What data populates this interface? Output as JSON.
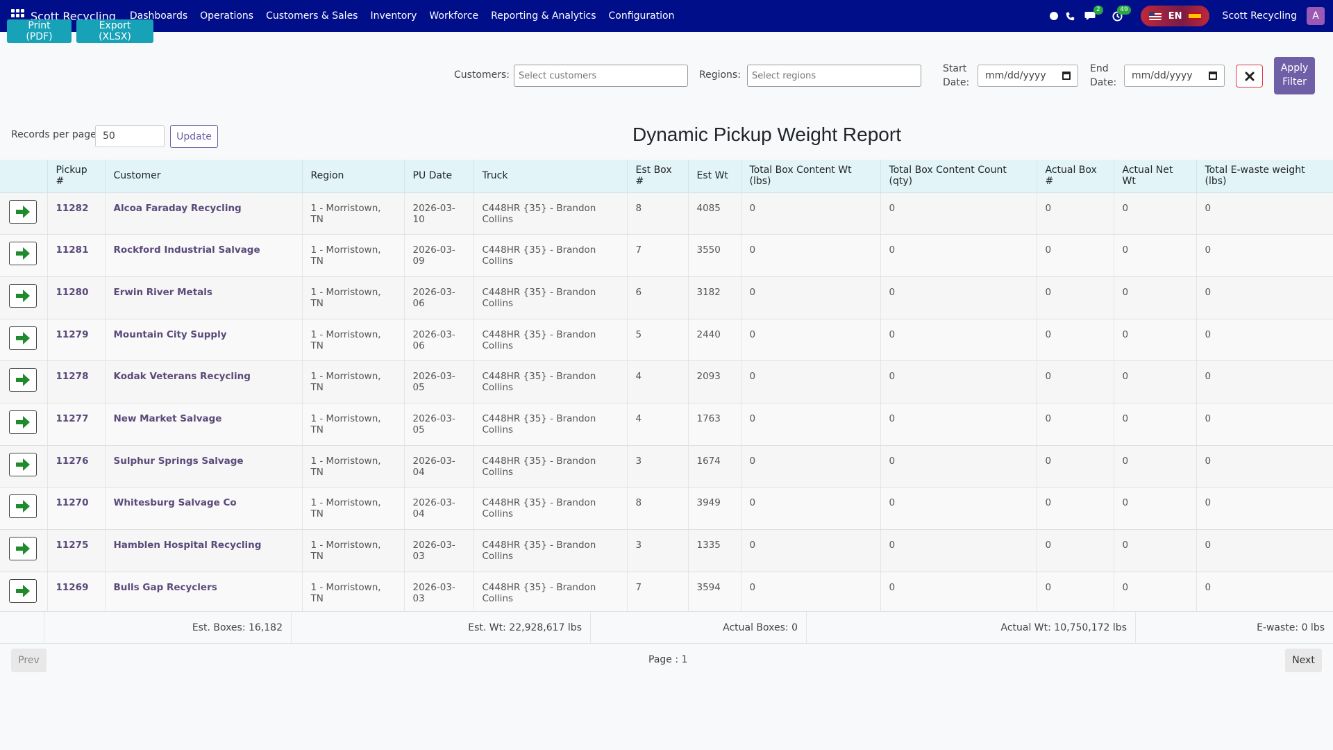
{
  "app": {
    "name": "Scott Recycling",
    "user_name": "Scott Recycling",
    "avatar_letter": "A"
  },
  "nav": {
    "menu": [
      "Dashboards",
      "Operations",
      "Customers & Sales",
      "Inventory",
      "Workforce",
      "Reporting & Analytics",
      "Configuration"
    ],
    "chat_badge": "2",
    "activity_badge": "49",
    "language": "EN"
  },
  "actions": {
    "print_label": "Print (PDF)",
    "export_label": "Export (XLSX)"
  },
  "filters": {
    "customers_label": "Customers:",
    "customers_placeholder": "Select customers",
    "regions_label": "Regions:",
    "regions_placeholder": "Select regions",
    "start_label_1": "Start",
    "start_label_2": "Date:",
    "start_value": "mm/dd/yyyy",
    "end_label_1": "End",
    "end_label_2": "Date:",
    "end_value": "mm/dd/yyyy",
    "apply_label_1": "Apply",
    "apply_label_2": "Filter"
  },
  "records": {
    "label": "Records per page:",
    "value": "50",
    "update_label": "Update"
  },
  "report_title": "Dynamic Pickup Weight Report",
  "table": {
    "headers": [
      "",
      "Pickup #",
      "Customer",
      "Region",
      "PU Date",
      "Truck",
      "Est Box #",
      "Est Wt",
      "Total Box Content Wt (lbs)",
      "Total Box Content Count (qty)",
      "Actual Box #",
      "Actual Net Wt",
      "Total E-waste weight (lbs)"
    ],
    "rows": [
      [
        "11282",
        "Alcoa Faraday Recycling",
        "1 - Morristown, TN",
        "2026-03-10",
        "C448HR {35} - Brandon Collins",
        "8",
        "4085",
        "0",
        "0",
        "0",
        "0",
        "0"
      ],
      [
        "11281",
        "Rockford Industrial Salvage",
        "1 - Morristown, TN",
        "2026-03-09",
        "C448HR {35} - Brandon Collins",
        "7",
        "3550",
        "0",
        "0",
        "0",
        "0",
        "0"
      ],
      [
        "11280",
        "Erwin River Metals",
        "1 - Morristown, TN",
        "2026-03-06",
        "C448HR {35} - Brandon Collins",
        "6",
        "3182",
        "0",
        "0",
        "0",
        "0",
        "0"
      ],
      [
        "11279",
        "Mountain City Supply",
        "1 - Morristown, TN",
        "2026-03-06",
        "C448HR {35} - Brandon Collins",
        "5",
        "2440",
        "0",
        "0",
        "0",
        "0",
        "0"
      ],
      [
        "11278",
        "Kodak Veterans Recycling",
        "1 - Morristown, TN",
        "2026-03-05",
        "C448HR {35} - Brandon Collins",
        "4",
        "2093",
        "0",
        "0",
        "0",
        "0",
        "0"
      ],
      [
        "11277",
        "New Market Salvage",
        "1 - Morristown, TN",
        "2026-03-05",
        "C448HR {35} - Brandon Collins",
        "4",
        "1763",
        "0",
        "0",
        "0",
        "0",
        "0"
      ],
      [
        "11276",
        "Sulphur Springs Salvage",
        "1 - Morristown, TN",
        "2026-03-04",
        "C448HR {35} - Brandon Collins",
        "3",
        "1674",
        "0",
        "0",
        "0",
        "0",
        "0"
      ],
      [
        "11270",
        "Whitesburg Salvage Co",
        "1 - Morristown, TN",
        "2026-03-04",
        "C448HR {35} - Brandon Collins",
        "8",
        "3949",
        "0",
        "0",
        "0",
        "0",
        "0"
      ],
      [
        "11275",
        "Hamblen Hospital Recycling",
        "1 - Morristown, TN",
        "2026-03-03",
        "C448HR {35} - Brandon Collins",
        "3",
        "1335",
        "0",
        "0",
        "0",
        "0",
        "0"
      ],
      [
        "11269",
        "Bulls Gap Recyclers",
        "1 - Morristown, TN",
        "2026-03-03",
        "C448HR {35} - Brandon Collins",
        "7",
        "3594",
        "0",
        "0",
        "0",
        "0",
        "0"
      ]
    ]
  },
  "totals": {
    "est_boxes": "Est. Boxes: 16,182",
    "est_wt": "Est. Wt: 22,928,617 lbs",
    "actual_boxes": "Actual Boxes: 0",
    "actual_wt": "Actual Wt: 10,750,172 lbs",
    "ewaste": "E-waste: 0 lbs"
  },
  "pagination": {
    "prev_label": "Prev",
    "page_label": "Page : 1",
    "next_label": "Next"
  },
  "colors": {
    "navbar": "#010e8a",
    "teal_button": "#17a2b8",
    "apply_button": "#6f5fa6",
    "arrow_green": "#1f8b2c",
    "header_bg": "#e2f4f8"
  }
}
